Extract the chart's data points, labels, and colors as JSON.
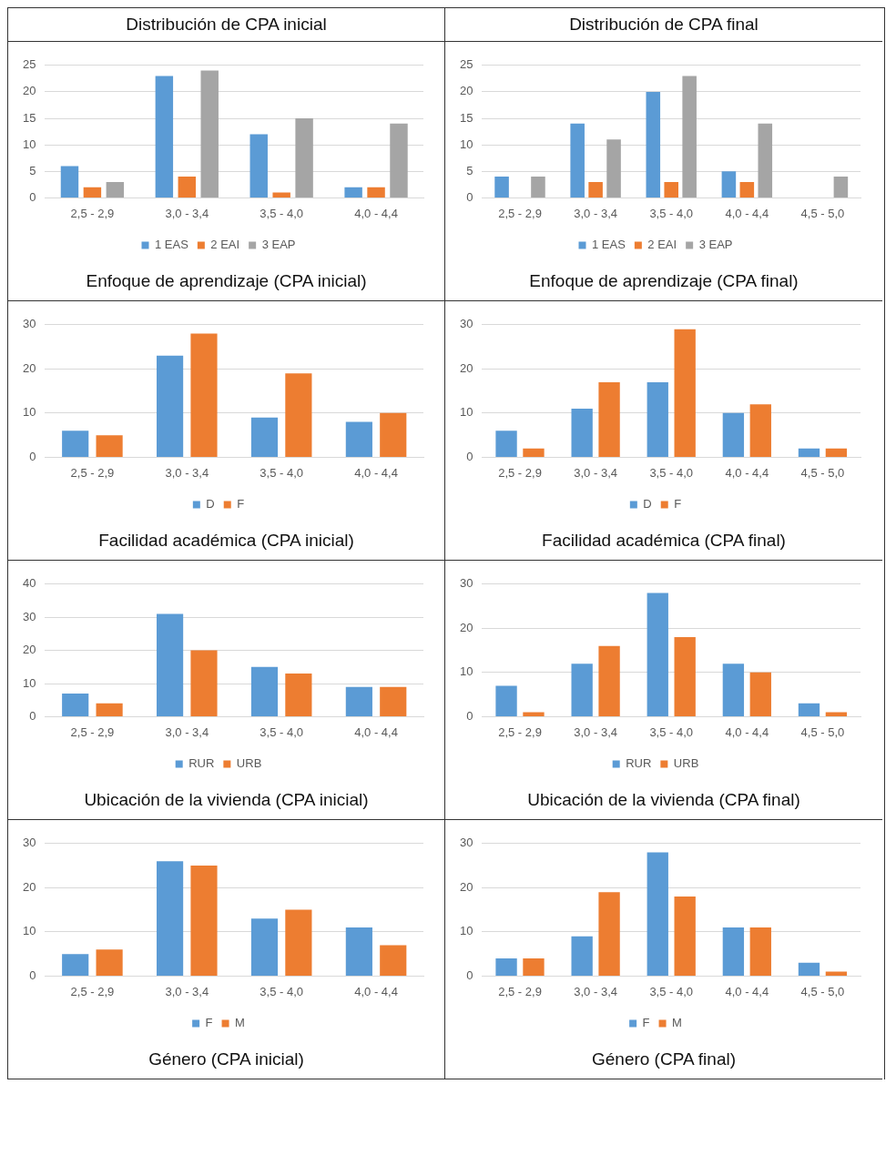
{
  "chart_data": [
    {
      "type": "bar",
      "annotations": [
        "Distribución de CPA inicial"
      ],
      "title": "Enfoque de aprendizaje (CPA inicial)",
      "categories": [
        "2,5 - 2,9",
        "3,0 - 3,4",
        "3,5 - 4,0",
        "4,0 - 4,4"
      ],
      "ylim": [
        0,
        25
      ],
      "yticks": [
        0,
        5,
        10,
        15,
        20,
        25
      ],
      "grid": "y",
      "legend": "bottom",
      "series": [
        {
          "name": "1 EAS",
          "color": "#5b9bd5",
          "values": [
            6,
            23,
            12,
            2
          ]
        },
        {
          "name": "2 EAI",
          "color": "#ed7d31",
          "values": [
            2,
            4,
            1,
            2
          ]
        },
        {
          "name": "3 EAP",
          "color": "#a5a5a5",
          "values": [
            3,
            24,
            15,
            14
          ]
        }
      ]
    },
    {
      "type": "bar",
      "annotations": [
        "Distribución de CPA final"
      ],
      "title": "Enfoque de aprendizaje (CPA final)",
      "categories": [
        "2,5 - 2,9",
        "3,0 - 3,4",
        "3,5 - 4,0",
        "4,0 - 4,4",
        "4,5 - 5,0"
      ],
      "ylim": [
        0,
        25
      ],
      "yticks": [
        0,
        5,
        10,
        15,
        20,
        25
      ],
      "grid": "y",
      "legend": "bottom",
      "series": [
        {
          "name": "1 EAS",
          "color": "#5b9bd5",
          "values": [
            4,
            14,
            20,
            5,
            0
          ]
        },
        {
          "name": "2 EAI",
          "color": "#ed7d31",
          "values": [
            0,
            3,
            3,
            3,
            0
          ]
        },
        {
          "name": "3 EAP",
          "color": "#a5a5a5",
          "values": [
            4,
            11,
            23,
            14,
            4
          ]
        }
      ]
    },
    {
      "type": "bar",
      "title": "Facilidad académica (CPA inicial)",
      "categories": [
        "2,5 - 2,9",
        "3,0 - 3,4",
        "3,5 - 4,0",
        "4,0 - 4,4"
      ],
      "ylim": [
        0,
        30
      ],
      "yticks": [
        0,
        10,
        20,
        30
      ],
      "grid": "y",
      "legend": "bottom",
      "series": [
        {
          "name": "D",
          "color": "#5b9bd5",
          "values": [
            6,
            23,
            9,
            8
          ]
        },
        {
          "name": "F",
          "color": "#ed7d31",
          "values": [
            5,
            28,
            19,
            10
          ]
        }
      ]
    },
    {
      "type": "bar",
      "title": "Facilidad académica (CPA final)",
      "categories": [
        "2,5 - 2,9",
        "3,0 - 3,4",
        "3,5 - 4,0",
        "4,0 - 4,4",
        "4,5 - 5,0"
      ],
      "ylim": [
        0,
        30
      ],
      "yticks": [
        0,
        10,
        20,
        30
      ],
      "grid": "y",
      "legend": "bottom",
      "series": [
        {
          "name": "D",
          "color": "#5b9bd5",
          "values": [
            6,
            11,
            17,
            10,
            2
          ]
        },
        {
          "name": "F",
          "color": "#ed7d31",
          "values": [
            2,
            17,
            29,
            12,
            2
          ]
        }
      ]
    },
    {
      "type": "bar",
      "title": "Ubicación de la vivienda (CPA inicial)",
      "categories": [
        "2,5 - 2,9",
        "3,0 - 3,4",
        "3,5 - 4,0",
        "4,0 - 4,4"
      ],
      "ylim": [
        0,
        40
      ],
      "yticks": [
        0,
        10,
        20,
        30,
        40
      ],
      "grid": "y",
      "legend": "bottom",
      "series": [
        {
          "name": "RUR",
          "color": "#5b9bd5",
          "values": [
            7,
            31,
            15,
            9
          ]
        },
        {
          "name": "URB",
          "color": "#ed7d31",
          "values": [
            4,
            20,
            13,
            9
          ]
        }
      ]
    },
    {
      "type": "bar",
      "title": "Ubicación de la vivienda (CPA final)",
      "categories": [
        "2,5 - 2,9",
        "3,0 - 3,4",
        "3,5 - 4,0",
        "4,0 - 4,4",
        "4,5 - 5,0"
      ],
      "ylim": [
        0,
        30
      ],
      "yticks": [
        0,
        10,
        20,
        30
      ],
      "grid": "y",
      "legend": "bottom",
      "series": [
        {
          "name": "RUR",
          "color": "#5b9bd5",
          "values": [
            7,
            12,
            28,
            12,
            3
          ]
        },
        {
          "name": "URB",
          "color": "#ed7d31",
          "values": [
            1,
            16,
            18,
            10,
            1
          ]
        }
      ]
    },
    {
      "type": "bar",
      "title": "Género (CPA inicial)",
      "categories": [
        "2,5 - 2,9",
        "3,0 - 3,4",
        "3,5 - 4,0",
        "4,0 - 4,4"
      ],
      "ylim": [
        0,
        30
      ],
      "yticks": [
        0,
        10,
        20,
        30
      ],
      "grid": "y",
      "legend": "bottom",
      "series": [
        {
          "name": "F",
          "color": "#5b9bd5",
          "values": [
            5,
            26,
            13,
            11
          ]
        },
        {
          "name": "M",
          "color": "#ed7d31",
          "values": [
            6,
            25,
            15,
            7
          ]
        }
      ]
    },
    {
      "type": "bar",
      "title": "Género (CPA final)",
      "categories": [
        "2,5 - 2,9",
        "3,0 - 3,4",
        "3,5 - 4,0",
        "4,0 - 4,4",
        "4,5 - 5,0"
      ],
      "ylim": [
        0,
        30
      ],
      "yticks": [
        0,
        10,
        20,
        30
      ],
      "grid": "y",
      "legend": "bottom",
      "series": [
        {
          "name": "F",
          "color": "#5b9bd5",
          "values": [
            4,
            9,
            28,
            11,
            3
          ]
        },
        {
          "name": "M",
          "color": "#ed7d31",
          "values": [
            4,
            19,
            18,
            11,
            1
          ]
        }
      ]
    }
  ]
}
